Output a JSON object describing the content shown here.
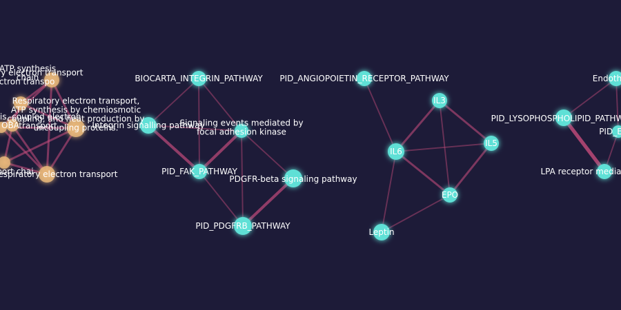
{
  "colors": {
    "background": "#1d1b38",
    "node_teal": "#5fe0d6",
    "node_orange": "#e8b77a",
    "edge_color": "#c04a7a",
    "label_color": "#ffffff"
  },
  "graph": {
    "nodes": [
      {
        "id": "atp",
        "group": "orange",
        "label": [
          "ATP synthesis",
          "chain"
        ]
      },
      {
        "id": "oxphos",
        "group": "orange",
        "label": [
          "Respiratory electron transport",
          "electron transpo"
        ]
      },
      {
        "id": "resp_coupled",
        "group": "orange",
        "label": [
          "Respiratory electron transport,",
          "ATP synthesis by chemiosmotic",
          "coupling, and heat production by",
          "uncoupling proteins."
        ]
      },
      {
        "id": "coupled",
        "group": "orange",
        "label": [
          "ois, coupled electron",
          "transport"
        ]
      },
      {
        "id": "resp_et",
        "group": "orange",
        "label": [
          "Respiratory electron transport"
        ]
      },
      {
        "id": "etc",
        "group": "orange",
        "label": [
          "nsport chai"
        ]
      },
      {
        "id": "edge_left",
        "group": "orange",
        "label": [
          "OBA"
        ]
      },
      {
        "id": "biocarta",
        "group": "teal",
        "label": [
          "BIOCARTA_INTEGRIN_PATHWAY"
        ]
      },
      {
        "id": "integrin",
        "group": "teal",
        "label": [
          "Integrin signalling pathway"
        ]
      },
      {
        "id": "focal",
        "group": "teal",
        "label": [
          "Signaling events mediated by",
          "focal adhesion kinase"
        ]
      },
      {
        "id": "fak",
        "group": "teal",
        "label": [
          "PID_FAK_PATHWAY"
        ]
      },
      {
        "id": "pdgfr",
        "group": "teal",
        "label": [
          "PDGFR-beta signaling pathway"
        ]
      },
      {
        "id": "pdgfrb",
        "group": "teal",
        "label": [
          "PID_PDGFRB_PATHWAY"
        ]
      },
      {
        "id": "angio",
        "group": "teal",
        "label": [
          "PID_ANGIOPOIETIN_RECEPTOR_PATHWAY"
        ]
      },
      {
        "id": "il3",
        "group": "teal",
        "label": [
          "IL3"
        ]
      },
      {
        "id": "il6",
        "group": "teal",
        "label": [
          "IL6"
        ]
      },
      {
        "id": "il5",
        "group": "teal",
        "label": [
          "IL5"
        ]
      },
      {
        "id": "epo",
        "group": "teal",
        "label": [
          "EPO"
        ]
      },
      {
        "id": "leptin",
        "group": "teal",
        "label": [
          "Leptin"
        ]
      },
      {
        "id": "endoth",
        "group": "teal",
        "label": [
          "Endoth"
        ]
      },
      {
        "id": "lyso",
        "group": "teal",
        "label": [
          "PID_LYSOPHOSPHOLIPID_PATHW"
        ]
      },
      {
        "id": "pid_e",
        "group": "teal",
        "label": [
          "PID_E"
        ]
      },
      {
        "id": "lpa",
        "group": "teal",
        "label": [
          "LPA receptor media"
        ]
      }
    ],
    "edges": [
      {
        "source": "atp",
        "target": "resp_coupled",
        "weight": 2
      },
      {
        "source": "atp",
        "target": "oxphos",
        "weight": 2
      },
      {
        "source": "atp",
        "target": "resp_et",
        "weight": 2
      },
      {
        "source": "oxphos",
        "target": "resp_coupled",
        "weight": 2
      },
      {
        "source": "oxphos",
        "target": "coupled",
        "weight": 2
      },
      {
        "source": "resp_coupled",
        "target": "resp_et",
        "weight": 2
      },
      {
        "source": "resp_coupled",
        "target": "etc",
        "weight": 2
      },
      {
        "source": "coupled",
        "target": "resp_et",
        "weight": 2
      },
      {
        "source": "coupled",
        "target": "etc",
        "weight": 2
      },
      {
        "source": "resp_et",
        "target": "etc",
        "weight": 2
      },
      {
        "source": "edge_left",
        "target": "resp_coupled",
        "weight": 2
      },
      {
        "source": "edge_left",
        "target": "atp",
        "weight": 2
      },
      {
        "source": "edge_left",
        "target": "resp_et",
        "weight": 2
      },
      {
        "source": "biocarta",
        "target": "integrin",
        "weight": 1
      },
      {
        "source": "biocarta",
        "target": "focal",
        "weight": 1
      },
      {
        "source": "biocarta",
        "target": "fak",
        "weight": 1
      },
      {
        "source": "integrin",
        "target": "fak",
        "weight": 3
      },
      {
        "source": "integrin",
        "target": "focal",
        "weight": 1
      },
      {
        "source": "fak",
        "target": "focal",
        "weight": 3
      },
      {
        "source": "fak",
        "target": "pdgfrb",
        "weight": 1
      },
      {
        "source": "focal",
        "target": "pdgfrb",
        "weight": 1
      },
      {
        "source": "focal",
        "target": "pdgfr",
        "weight": 1
      },
      {
        "source": "pdgfr",
        "target": "pdgfrb",
        "weight": 3
      },
      {
        "source": "angio",
        "target": "il6",
        "weight": 1
      },
      {
        "source": "il3",
        "target": "il6",
        "weight": 2
      },
      {
        "source": "il3",
        "target": "il5",
        "weight": 2
      },
      {
        "source": "il3",
        "target": "epo",
        "weight": 1
      },
      {
        "source": "il6",
        "target": "il5",
        "weight": 1
      },
      {
        "source": "il6",
        "target": "epo",
        "weight": 2
      },
      {
        "source": "il6",
        "target": "leptin",
        "weight": 1
      },
      {
        "source": "il5",
        "target": "epo",
        "weight": 2
      },
      {
        "source": "epo",
        "target": "leptin",
        "weight": 1
      },
      {
        "source": "lyso",
        "target": "lpa",
        "weight": 4
      },
      {
        "source": "lyso",
        "target": "endoth",
        "weight": 1
      },
      {
        "source": "pid_e",
        "target": "endoth",
        "weight": 1
      },
      {
        "source": "pid_e",
        "target": "lpa",
        "weight": 1
      }
    ]
  }
}
